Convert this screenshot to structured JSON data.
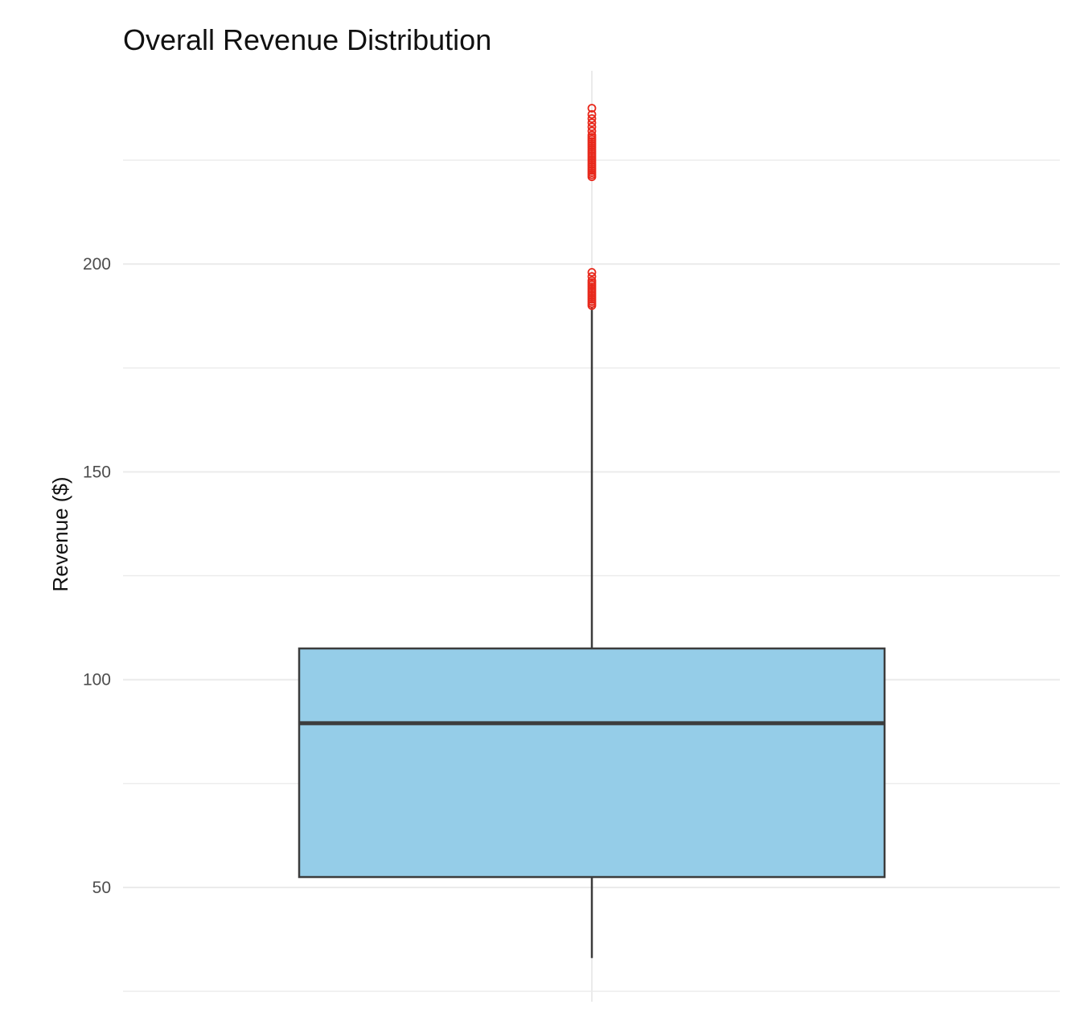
{
  "chart_data": {
    "type": "box",
    "title": "Overall Revenue Distribution",
    "xlabel": "",
    "ylabel": "Revenue ($)",
    "ylim": [
      22.5,
      246.5
    ],
    "y_ticks": [
      50,
      100,
      150,
      200
    ],
    "y_tick_labels": [
      "50",
      "100",
      "150",
      "200"
    ],
    "grid": true,
    "legend": "none",
    "box": {
      "min": 33,
      "q1": 52.5,
      "median": 89.5,
      "q3": 107.5,
      "max": 189.5,
      "outliers": [
        190,
        190.5,
        191,
        191.5,
        192,
        192.5,
        193,
        193.5,
        194,
        194.5,
        195,
        195.5,
        196,
        197,
        198,
        221,
        221.5,
        222,
        222.5,
        223,
        223.5,
        224,
        224.5,
        225,
        225.5,
        226,
        226.5,
        227,
        227.5,
        228,
        228.5,
        229,
        229.5,
        230,
        230.5,
        231,
        232,
        233,
        234,
        235,
        236,
        237.5
      ]
    },
    "colors": {
      "box_fill": "#95cde8",
      "box_stroke": "#3c3c3c",
      "outlier": "#e8291c",
      "grid": "#ebebeb"
    }
  }
}
